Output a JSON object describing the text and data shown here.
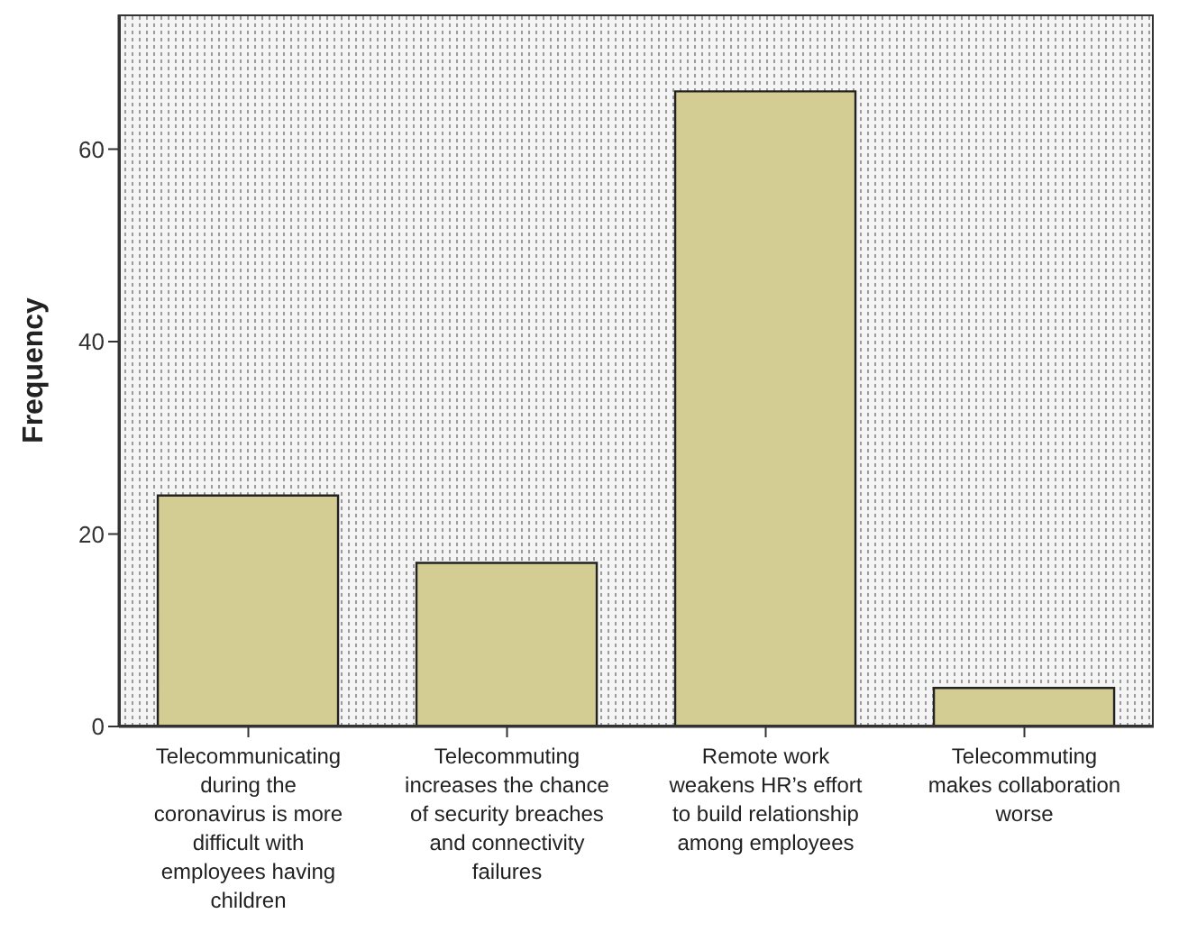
{
  "chart_data": {
    "type": "bar",
    "ylabel": "Frequency",
    "categories": [
      "Telecommunicating during the coronavirus is more difficult with employees having children",
      "Telecommuting increases the chance of security breaches and connectivity failures",
      "Remote work weakens HR’s effort to build relationship among employees",
      "Telecommuting makes collaboration worse"
    ],
    "values": [
      24,
      17,
      66,
      4
    ],
    "color": "#d3cd94",
    "ylim": [
      0,
      74
    ],
    "yticks": [
      0,
      20,
      40,
      60
    ],
    "grid": false,
    "legend": false
  }
}
